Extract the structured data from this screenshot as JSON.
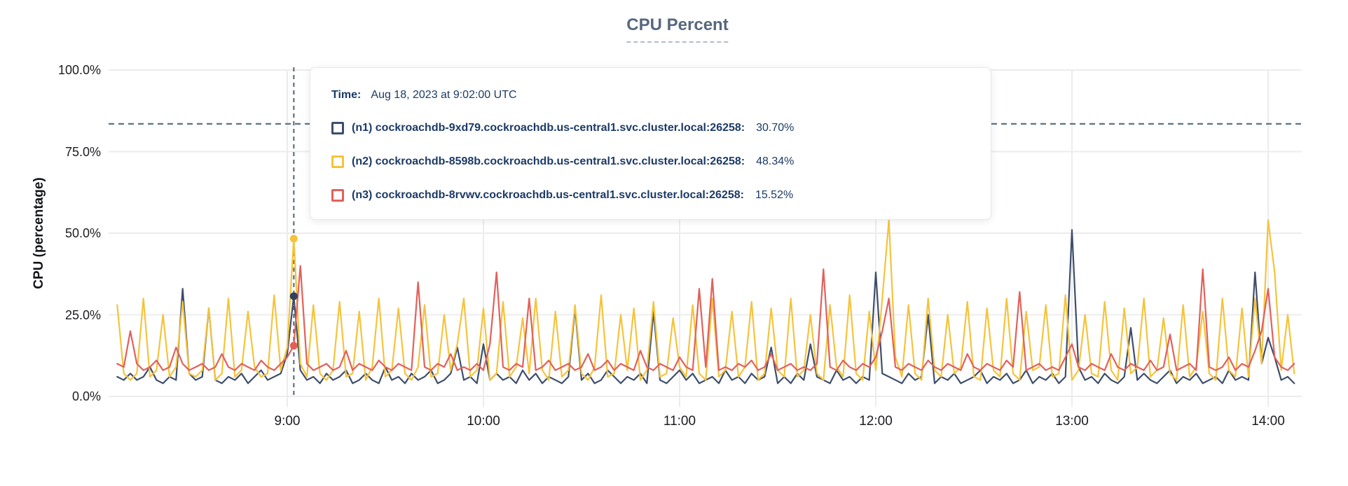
{
  "title": "CPU Percent",
  "y_axis": {
    "label": "CPU (percentage)",
    "ticks": [
      "0.0%",
      "25.0%",
      "50.0%",
      "75.0%",
      "100.0%"
    ]
  },
  "x_axis": {
    "ticks": [
      "9:00",
      "10:00",
      "11:00",
      "12:00",
      "13:00",
      "14:00"
    ]
  },
  "tooltip": {
    "time_label": "Time:",
    "time_value": "Aug 18, 2023 at 9:02:00 UTC",
    "rows": [
      {
        "name": "(n1) cockroachdb-9xd79.cockroachdb.us-central1.svc.cluster.local:26258:",
        "value": "30.70%",
        "color": "#3e4e6b"
      },
      {
        "name": "(n2) cockroachdb-8598b.cockroachdb.us-central1.svc.cluster.local:26258:",
        "value": "48.34%",
        "color": "#f5c33b"
      },
      {
        "name": "(n3) cockroachdb-8rvwv.cockroachdb.us-central1.svc.cluster.local:26258:",
        "value": "15.52%",
        "color": "#e2605a"
      }
    ]
  },
  "colors": {
    "grid": "#ececee",
    "dashed_guides": "#5c7384",
    "title": "#57677f",
    "tooltip_text": "#1c3a66",
    "n1_line": "#3e4e6b",
    "n2_line": "#f5c33b",
    "n3_line": "#e2605a",
    "n1_dot": "#2f415f"
  },
  "chart_data": {
    "type": "line",
    "title": "CPU Percent",
    "xlabel": "",
    "ylabel": "CPU (percentage)",
    "ylim": [
      0,
      100
    ],
    "y_ticks_percent": [
      0,
      25,
      50,
      75,
      100
    ],
    "x_ticks_hours": [
      9,
      10,
      11,
      12,
      13,
      14
    ],
    "x_range_minutes": [
      485,
      850
    ],
    "grid": true,
    "legend_position": "tooltip",
    "threshold_percent": 83.5,
    "sample_start_minute": 488,
    "sample_step_minutes": 2,
    "hover": {
      "minute": 542,
      "time_text": "Aug 18, 2023 at 9:02:00 UTC",
      "values": [
        30.7,
        48.34,
        15.52
      ]
    },
    "series": [
      {
        "name": "n1",
        "color": "#3e4e6b",
        "dot_color": "#2f415f",
        "values": [
          6,
          5,
          7,
          5,
          6,
          9,
          5,
          4,
          6,
          5,
          33,
          7,
          5,
          6,
          27,
          5,
          4,
          6,
          5,
          7,
          4,
          6,
          8,
          5,
          6,
          7,
          13,
          30.7,
          8,
          5,
          6,
          4,
          7,
          5,
          6,
          8,
          4,
          5,
          7,
          5,
          4,
          9,
          5,
          6,
          4,
          7,
          5,
          6,
          8,
          4,
          5,
          7,
          15,
          5,
          6,
          4,
          16,
          5,
          7,
          5,
          6,
          4,
          8,
          5,
          7,
          4,
          6,
          5,
          4,
          6,
          27,
          5,
          7,
          4,
          5,
          8,
          6,
          4,
          6,
          5,
          7,
          4,
          26,
          5,
          4,
          6,
          8,
          5,
          7,
          4,
          5,
          6,
          4,
          8,
          5,
          6,
          4,
          7,
          5,
          6,
          15,
          4,
          6,
          4,
          7,
          5,
          16,
          6,
          5,
          4,
          8,
          5,
          6,
          4,
          6,
          5,
          38,
          7,
          6,
          5,
          4,
          7,
          5,
          6,
          25,
          4,
          6,
          5,
          7,
          4,
          5,
          6,
          8,
          4,
          6,
          5,
          7,
          4,
          5,
          8,
          4,
          6,
          5,
          7,
          4,
          6,
          51,
          9,
          5,
          6,
          4,
          7,
          5,
          4,
          6,
          21,
          5,
          7,
          5,
          4,
          6,
          8,
          4,
          6,
          5,
          7,
          4,
          5,
          6,
          4,
          8,
          5,
          6,
          5,
          38,
          10,
          18,
          12,
          5,
          6,
          4
        ]
      },
      {
        "name": "n2",
        "color": "#f5c33b",
        "dot_color": "#f5c33b",
        "values": [
          28,
          7,
          5,
          7,
          30,
          6,
          8,
          25,
          6,
          9,
          29,
          7,
          6,
          8,
          27,
          5,
          7,
          30,
          6,
          8,
          26,
          9,
          6,
          7,
          31,
          8,
          15,
          48.34,
          10,
          6,
          28,
          7,
          5,
          8,
          29,
          6,
          7,
          26,
          5,
          9,
          30,
          6,
          8,
          27,
          7,
          5,
          9,
          28,
          6,
          7,
          25,
          8,
          16,
          30,
          6,
          8,
          27,
          5,
          7,
          29,
          6,
          9,
          24,
          7,
          30,
          8,
          5,
          26,
          6,
          8,
          28,
          7,
          5,
          9,
          31,
          6,
          7,
          25,
          8,
          27,
          5,
          8,
          29,
          6,
          7,
          24,
          9,
          6,
          28,
          7,
          5,
          30,
          6,
          8,
          26,
          6,
          9,
          29,
          5,
          7,
          27,
          8,
          6,
          30,
          6,
          8,
          25,
          7,
          5,
          28,
          9,
          6,
          31,
          7,
          5,
          26,
          8,
          30,
          54,
          12,
          6,
          28,
          7,
          5,
          30,
          8,
          6,
          25,
          7,
          9,
          29,
          6,
          5,
          27,
          8,
          6,
          30,
          7,
          5,
          26,
          8,
          9,
          28,
          6,
          7,
          31,
          5,
          8,
          25,
          7,
          6,
          29,
          8,
          5,
          27,
          7,
          9,
          30,
          6,
          8,
          24,
          7,
          5,
          28,
          6,
          9,
          26,
          7,
          5,
          30,
          8,
          6,
          27,
          6,
          30,
          10,
          54,
          38,
          8,
          25,
          7
        ]
      },
      {
        "name": "n3",
        "color": "#e2605a",
        "dot_color": "#e2605a",
        "values": [
          10,
          9,
          20,
          10,
          8,
          9,
          11,
          8,
          9,
          15,
          10,
          8,
          9,
          10,
          8,
          9,
          13,
          9,
          8,
          10,
          9,
          8,
          11,
          9,
          8,
          10,
          12,
          15.52,
          40,
          10,
          8,
          9,
          10,
          8,
          9,
          14,
          8,
          10,
          9,
          8,
          11,
          9,
          8,
          10,
          9,
          8,
          35,
          9,
          8,
          10,
          9,
          13,
          8,
          9,
          8,
          10,
          8,
          16,
          38,
          9,
          8,
          10,
          9,
          30,
          8,
          9,
          11,
          8,
          9,
          10,
          8,
          9,
          13,
          8,
          9,
          11,
          8,
          10,
          9,
          8,
          14,
          9,
          8,
          10,
          9,
          8,
          12,
          9,
          8,
          33,
          9,
          36,
          8,
          9,
          8,
          10,
          9,
          11,
          8,
          9,
          13,
          8,
          9,
          10,
          8,
          9,
          8,
          10,
          39,
          9,
          8,
          11,
          9,
          8,
          10,
          9,
          12,
          20,
          30,
          9,
          8,
          10,
          9,
          8,
          11,
          9,
          8,
          10,
          9,
          8,
          13,
          9,
          8,
          10,
          9,
          8,
          11,
          9,
          32,
          8,
          9,
          10,
          8,
          9,
          8,
          12,
          16,
          9,
          8,
          10,
          9,
          8,
          13,
          9,
          8,
          10,
          9,
          8,
          11,
          8,
          9,
          19,
          8,
          9,
          10,
          8,
          39,
          9,
          8,
          9,
          12,
          8,
          10,
          9,
          14,
          20,
          33,
          12,
          9,
          8,
          10
        ]
      }
    ]
  }
}
